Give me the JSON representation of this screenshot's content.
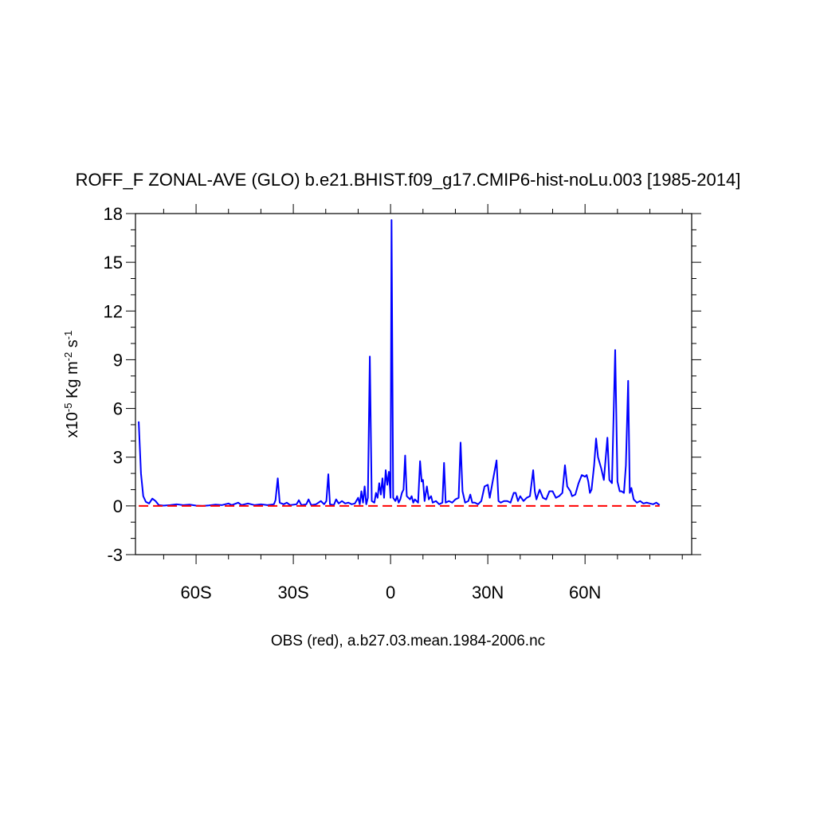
{
  "chart_data": {
    "type": "line",
    "title": "ROFF_F ZONAL-AVE (GLO) b.e21.BHIST.f09_g17.CMIP6-hist-noLu.003 [1985-2014]",
    "ylabel": [
      {
        "text": "x10"
      },
      {
        "text": "-5",
        "sup": true
      },
      {
        "text": " Kg m"
      },
      {
        "text": "-2",
        "sup": true
      },
      {
        "text": " s"
      },
      {
        "text": "-1",
        "sup": true
      }
    ],
    "note": "OBS (red), a.b27.03.mean.1984-2006.nc",
    "xlim": [
      -78.7,
      92.9
    ],
    "ylim": [
      -3,
      18
    ],
    "xticks": [
      {
        "value": -60,
        "label": "60S"
      },
      {
        "value": -30,
        "label": "30S"
      },
      0,
      {
        "value": 30,
        "label": "30N"
      },
      {
        "value": 60,
        "label": "60N"
      }
    ],
    "xminorticks": [
      -70,
      -50,
      -40,
      -20,
      -10,
      10,
      20,
      40,
      50,
      70,
      80,
      90
    ],
    "yticks": [
      -3,
      0,
      3,
      6,
      9,
      12,
      15,
      18
    ],
    "yminorticks": [
      -2,
      -1,
      1,
      2,
      4,
      5,
      7,
      8,
      10,
      11,
      13,
      14,
      16,
      17
    ],
    "series": [
      {
        "color": "#0000ff",
        "dashed": false,
        "x": [
          -77.7,
          -77,
          -76.3,
          -75.5,
          -74.5,
          -73.5,
          -72.5,
          -71.5,
          -70,
          -68,
          -66,
          -64,
          -62,
          -60,
          -58,
          -56,
          -54,
          -52,
          -50,
          -49,
          -47,
          -46,
          -44,
          -42,
          -40,
          -38,
          -36,
          -35.5,
          -34.8,
          -34.2,
          -33,
          -32,
          -31,
          -29,
          -28.3,
          -27.5,
          -26,
          -25.3,
          -24.5,
          -23,
          -21.5,
          -20.5,
          -19.8,
          -19.2,
          -18.7,
          -17.5,
          -16.8,
          -16,
          -15,
          -14,
          -13,
          -12,
          -11,
          -10,
          -9.5,
          -9,
          -8.5,
          -8,
          -7.5,
          -7,
          -6.4,
          -5.8,
          -5,
          -4.5,
          -4,
          -3.5,
          -3,
          -2.5,
          -2,
          -1.5,
          -1,
          -0.5,
          0,
          0.3,
          0.8,
          1.5,
          2,
          2.5,
          3,
          3.5,
          4,
          4.5,
          5,
          5.5,
          6,
          6.5,
          7,
          7.5,
          8,
          8.5,
          9.1,
          9.6,
          10,
          10.5,
          11.2,
          11.8,
          12.5,
          13,
          14,
          15,
          16,
          16.5,
          17,
          18,
          19,
          20,
          21,
          21.6,
          22.2,
          23,
          24,
          24.6,
          25.2,
          26,
          27,
          28,
          29,
          30,
          30.6,
          31.5,
          32.7,
          33.3,
          34,
          35,
          36,
          37,
          38,
          38.6,
          39.3,
          40,
          41,
          42,
          43,
          44,
          44.5,
          45,
          46,
          47,
          48,
          49,
          50,
          51,
          52,
          53,
          53.8,
          54.5,
          55.5,
          56,
          57,
          58,
          59,
          60,
          60.5,
          61,
          61.5,
          62,
          62.8,
          63.4,
          64,
          65,
          65.8,
          66.9,
          67.5,
          68.3,
          69.3,
          70,
          70.7,
          71.3,
          72,
          72.6,
          73.3,
          73.8,
          74.3,
          75,
          76,
          77,
          78,
          79,
          80,
          81,
          82,
          83
        ],
        "values": [
          5.2,
          2.0,
          0.6,
          0.25,
          0.15,
          0.45,
          0.3,
          0.05,
          0.02,
          0.05,
          0.1,
          0.05,
          0.08,
          0.02,
          0.0,
          0.03,
          0.08,
          0.05,
          0.15,
          0.05,
          0.2,
          0.05,
          0.15,
          0.05,
          0.1,
          0.05,
          0.1,
          0.35,
          1.7,
          0.2,
          0.1,
          0.2,
          0.05,
          0.1,
          0.35,
          0.05,
          0.1,
          0.4,
          0.05,
          0.1,
          0.3,
          0.1,
          0.3,
          1.95,
          0.1,
          0.05,
          0.4,
          0.15,
          0.3,
          0.15,
          0.2,
          0.1,
          0.15,
          0.5,
          0.1,
          0.9,
          0.2,
          1.2,
          0.1,
          0.5,
          9.2,
          0.3,
          0.2,
          0.8,
          0.5,
          1.4,
          0.7,
          1.7,
          0.5,
          2.2,
          1.3,
          2.1,
          0.5,
          17.6,
          0.5,
          0.3,
          0.6,
          0.2,
          0.4,
          0.8,
          1.0,
          3.1,
          0.6,
          0.5,
          0.4,
          0.6,
          0.2,
          0.4,
          0.3,
          0.2,
          2.75,
          1.5,
          1.6,
          0.3,
          1.2,
          0.4,
          0.6,
          0.2,
          0.3,
          0.1,
          0.2,
          2.65,
          0.2,
          0.3,
          0.2,
          0.4,
          0.5,
          3.9,
          0.9,
          0.2,
          0.3,
          0.7,
          0.2,
          0.2,
          0.1,
          0.3,
          1.2,
          1.3,
          0.5,
          1.5,
          2.8,
          0.3,
          0.2,
          0.3,
          0.3,
          0.2,
          0.8,
          0.8,
          0.3,
          0.6,
          0.3,
          0.5,
          0.6,
          2.2,
          0.9,
          0.4,
          1.0,
          0.5,
          0.4,
          0.9,
          0.9,
          0.5,
          0.6,
          0.8,
          2.5,
          1.2,
          0.9,
          0.6,
          0.7,
          1.4,
          1.9,
          1.8,
          1.9,
          1.5,
          0.8,
          1.0,
          2.5,
          4.15,
          3.0,
          2.3,
          1.6,
          4.2,
          1.6,
          1.4,
          9.6,
          1.5,
          0.9,
          0.9,
          0.8,
          2.5,
          7.7,
          0.8,
          1.1,
          0.4,
          0.2,
          0.3,
          0.15,
          0.2,
          0.15,
          0.1,
          0.2,
          0.05
        ]
      },
      {
        "color": "#ff0000",
        "dashed": true,
        "x": [
          -77.7,
          83
        ],
        "values": [
          0,
          0
        ]
      }
    ]
  }
}
